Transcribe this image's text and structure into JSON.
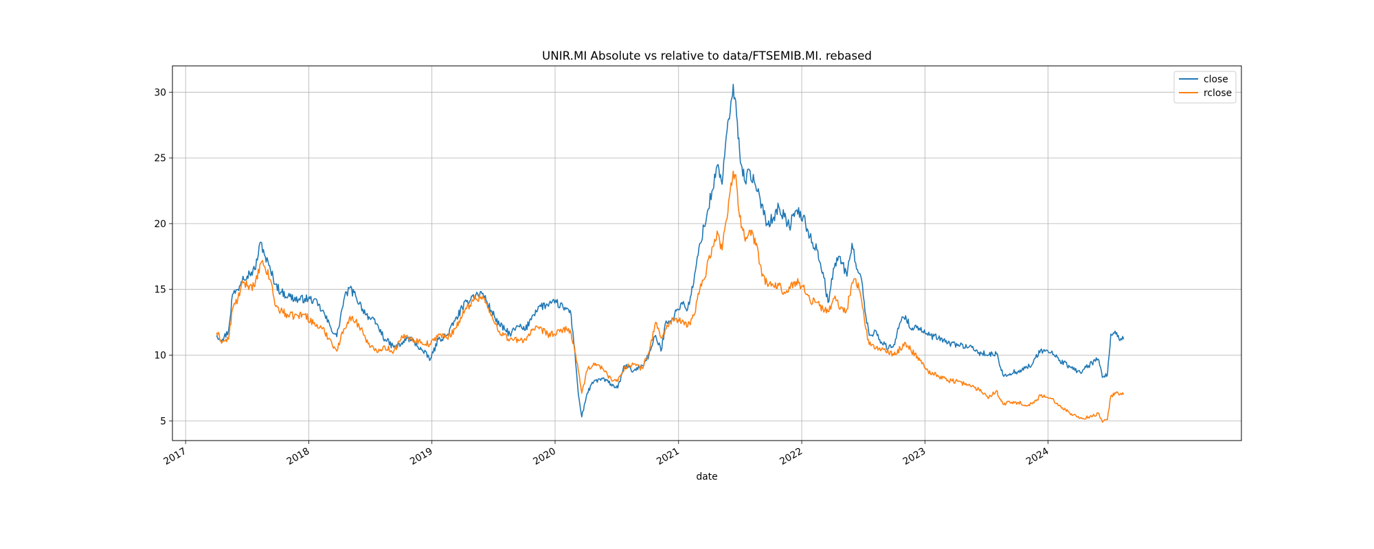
{
  "chart_data": {
    "type": "line",
    "title": "UNIR.MI Absolute vs relative to data/FTSEMIB.MI. rebased",
    "xlabel": "date",
    "ylabel": "",
    "x_ticks": [
      "2017",
      "2018",
      "2019",
      "2020",
      "2021",
      "2022",
      "2023",
      "2024"
    ],
    "y_ticks": [
      5,
      10,
      15,
      20,
      25,
      30
    ],
    "xlim": [
      "2016-11-23",
      "2025-07-27"
    ],
    "ylim": [
      3.5,
      32.0
    ],
    "grid": true,
    "legend_position": "top-right",
    "series": [
      {
        "name": "close",
        "color": "#1f77b4",
        "points": [
          [
            "2017-04-03",
            11.5
          ],
          [
            "2017-04-20",
            11.2
          ],
          [
            "2017-05-08",
            11.8
          ],
          [
            "2017-05-20",
            14.6
          ],
          [
            "2017-06-05",
            15.0
          ],
          [
            "2017-06-20",
            16.0
          ],
          [
            "2017-07-10",
            16.2
          ],
          [
            "2017-07-25",
            16.5
          ],
          [
            "2017-08-12",
            18.6
          ],
          [
            "2017-08-25",
            17.5
          ],
          [
            "2017-09-10",
            16.4
          ],
          [
            "2017-09-25",
            15.4
          ],
          [
            "2017-10-10",
            14.8
          ],
          [
            "2017-11-01",
            14.5
          ],
          [
            "2017-12-01",
            14.2
          ],
          [
            "2017-12-20",
            14.3
          ],
          [
            "2018-01-15",
            14.2
          ],
          [
            "2018-02-10",
            13.4
          ],
          [
            "2018-03-05",
            12.2
          ],
          [
            "2018-03-25",
            11.4
          ],
          [
            "2018-04-15",
            14.2
          ],
          [
            "2018-05-01",
            15.1
          ],
          [
            "2018-05-20",
            14.5
          ],
          [
            "2018-06-10",
            13.5
          ],
          [
            "2018-07-01",
            12.8
          ],
          [
            "2018-07-20",
            12.4
          ],
          [
            "2018-08-15",
            11.2
          ],
          [
            "2018-09-10",
            10.6
          ],
          [
            "2018-10-01",
            10.8
          ],
          [
            "2018-10-20",
            11.3
          ],
          [
            "2018-11-10",
            11.0
          ],
          [
            "2018-12-01",
            10.4
          ],
          [
            "2018-12-28",
            9.7
          ],
          [
            "2019-01-20",
            11.2
          ],
          [
            "2019-02-15",
            11.5
          ],
          [
            "2019-03-10",
            12.6
          ],
          [
            "2019-04-01",
            13.6
          ],
          [
            "2019-05-01",
            14.5
          ],
          [
            "2019-06-01",
            14.7
          ],
          [
            "2019-06-25",
            13.4
          ],
          [
            "2019-07-20",
            12.3
          ],
          [
            "2019-08-20",
            11.6
          ],
          [
            "2019-09-15",
            12.2
          ],
          [
            "2019-10-05",
            11.9
          ],
          [
            "2019-10-25",
            13.0
          ],
          [
            "2019-11-15",
            13.7
          ],
          [
            "2019-12-10",
            13.8
          ],
          [
            "2020-01-05",
            14.0
          ],
          [
            "2020-01-25",
            13.6
          ],
          [
            "2020-02-15",
            13.4
          ],
          [
            "2020-02-28",
            10.5
          ],
          [
            "2020-03-10",
            7.0
          ],
          [
            "2020-03-20",
            5.3
          ],
          [
            "2020-04-05",
            7.1
          ],
          [
            "2020-04-25",
            8.0
          ],
          [
            "2020-05-20",
            8.2
          ],
          [
            "2020-06-15",
            7.8
          ],
          [
            "2020-07-05",
            7.5
          ],
          [
            "2020-07-25",
            9.2
          ],
          [
            "2020-08-20",
            8.8
          ],
          [
            "2020-09-15",
            9.2
          ],
          [
            "2020-10-05",
            10.0
          ],
          [
            "2020-10-25",
            11.5
          ],
          [
            "2020-11-10",
            10.3
          ],
          [
            "2020-11-25",
            12.6
          ],
          [
            "2020-12-15",
            12.8
          ],
          [
            "2021-01-10",
            14.0
          ],
          [
            "2021-01-28",
            13.5
          ],
          [
            "2021-02-15",
            15.5
          ],
          [
            "2021-03-05",
            18.5
          ],
          [
            "2021-03-25",
            20.5
          ],
          [
            "2021-04-10",
            22.5
          ],
          [
            "2021-04-28",
            24.5
          ],
          [
            "2021-05-10",
            23.0
          ],
          [
            "2021-05-20",
            26.0
          ],
          [
            "2021-06-03",
            28.5
          ],
          [
            "2021-06-12",
            30.6
          ],
          [
            "2021-06-22",
            28.2
          ],
          [
            "2021-07-01",
            25.5
          ],
          [
            "2021-07-15",
            23.3
          ],
          [
            "2021-08-01",
            24.0
          ],
          [
            "2021-08-20",
            22.5
          ],
          [
            "2021-09-05",
            21.5
          ],
          [
            "2021-09-20",
            20.0
          ],
          [
            "2021-10-10",
            20.5
          ],
          [
            "2021-10-25",
            21.3
          ],
          [
            "2021-11-10",
            20.5
          ],
          [
            "2021-11-25",
            19.8
          ],
          [
            "2021-12-15",
            21.0
          ],
          [
            "2022-01-05",
            20.5
          ],
          [
            "2022-01-25",
            19.0
          ],
          [
            "2022-02-15",
            18.0
          ],
          [
            "2022-03-05",
            16.3
          ],
          [
            "2022-03-20",
            14.0
          ],
          [
            "2022-04-10",
            17.0
          ],
          [
            "2022-04-25",
            17.5
          ],
          [
            "2022-05-15",
            16.0
          ],
          [
            "2022-05-30",
            18.5
          ],
          [
            "2022-06-10",
            17.0
          ],
          [
            "2022-06-25",
            16.0
          ],
          [
            "2022-07-10",
            13.0
          ],
          [
            "2022-07-20",
            11.5
          ],
          [
            "2022-08-10",
            11.8
          ],
          [
            "2022-08-25",
            11.0
          ],
          [
            "2022-09-15",
            10.5
          ],
          [
            "2022-10-01",
            10.8
          ],
          [
            "2022-10-20",
            12.5
          ],
          [
            "2022-11-05",
            13.0
          ],
          [
            "2022-11-20",
            12.0
          ],
          [
            "2022-12-10",
            12.2
          ],
          [
            "2023-01-10",
            11.5
          ],
          [
            "2023-02-10",
            11.3
          ],
          [
            "2023-03-10",
            10.9
          ],
          [
            "2023-04-10",
            10.8
          ],
          [
            "2023-05-10",
            10.6
          ],
          [
            "2023-06-10",
            10.2
          ],
          [
            "2023-07-10",
            10.0
          ],
          [
            "2023-08-01",
            10.1
          ],
          [
            "2023-08-20",
            8.5
          ],
          [
            "2023-09-10",
            8.6
          ],
          [
            "2023-10-05",
            8.8
          ],
          [
            "2023-10-25",
            9.0
          ],
          [
            "2023-11-15",
            9.3
          ],
          [
            "2023-12-10",
            10.4
          ],
          [
            "2024-01-10",
            10.2
          ],
          [
            "2024-02-05",
            9.6
          ],
          [
            "2024-03-05",
            9.1
          ],
          [
            "2024-04-05",
            8.7
          ],
          [
            "2024-05-10",
            9.4
          ],
          [
            "2024-05-28",
            9.7
          ],
          [
            "2024-06-10",
            8.3
          ],
          [
            "2024-06-25",
            8.5
          ],
          [
            "2024-07-05",
            11.6
          ],
          [
            "2024-07-20",
            11.6
          ],
          [
            "2024-08-01",
            11.1
          ],
          [
            "2024-08-12",
            11.2
          ]
        ]
      },
      {
        "name": "rclose",
        "color": "#ff7f0e",
        "points": [
          [
            "2017-04-03",
            11.7
          ],
          [
            "2017-04-20",
            11.0
          ],
          [
            "2017-05-08",
            11.2
          ],
          [
            "2017-05-20",
            13.5
          ],
          [
            "2017-06-05",
            14.3
          ],
          [
            "2017-06-20",
            15.5
          ],
          [
            "2017-07-10",
            15.3
          ],
          [
            "2017-07-25",
            15.2
          ],
          [
            "2017-08-12",
            17.0
          ],
          [
            "2017-08-25",
            16.6
          ],
          [
            "2017-09-10",
            15.7
          ],
          [
            "2017-09-25",
            13.7
          ],
          [
            "2017-10-10",
            13.4
          ],
          [
            "2017-11-01",
            13.0
          ],
          [
            "2017-12-01",
            13.0
          ],
          [
            "2017-12-20",
            13.1
          ],
          [
            "2018-01-15",
            12.4
          ],
          [
            "2018-02-10",
            12.0
          ],
          [
            "2018-03-05",
            11.2
          ],
          [
            "2018-03-25",
            10.3
          ],
          [
            "2018-04-15",
            12.0
          ],
          [
            "2018-05-01",
            12.8
          ],
          [
            "2018-05-20",
            12.6
          ],
          [
            "2018-06-10",
            11.8
          ],
          [
            "2018-07-01",
            10.6
          ],
          [
            "2018-07-20",
            10.4
          ],
          [
            "2018-08-15",
            10.6
          ],
          [
            "2018-09-10",
            10.3
          ],
          [
            "2018-10-01",
            11.2
          ],
          [
            "2018-10-20",
            11.5
          ],
          [
            "2018-11-10",
            11.1
          ],
          [
            "2018-12-01",
            11.0
          ],
          [
            "2018-12-28",
            10.8
          ],
          [
            "2019-01-20",
            11.6
          ],
          [
            "2019-02-15",
            11.3
          ],
          [
            "2019-03-10",
            12.0
          ],
          [
            "2019-04-01",
            13.0
          ],
          [
            "2019-05-01",
            14.2
          ],
          [
            "2019-06-01",
            14.5
          ],
          [
            "2019-06-25",
            13.0
          ],
          [
            "2019-07-20",
            11.8
          ],
          [
            "2019-08-20",
            11.2
          ],
          [
            "2019-09-15",
            11.1
          ],
          [
            "2019-10-05",
            11.2
          ],
          [
            "2019-10-25",
            11.9
          ],
          [
            "2019-11-15",
            12.0
          ],
          [
            "2019-12-10",
            11.6
          ],
          [
            "2020-01-05",
            11.6
          ],
          [
            "2020-01-25",
            12.0
          ],
          [
            "2020-02-15",
            11.9
          ],
          [
            "2020-02-28",
            10.3
          ],
          [
            "2020-03-10",
            8.8
          ],
          [
            "2020-03-20",
            7.1
          ],
          [
            "2020-04-05",
            8.8
          ],
          [
            "2020-04-25",
            9.4
          ],
          [
            "2020-05-20",
            9.0
          ],
          [
            "2020-06-15",
            8.2
          ],
          [
            "2020-07-05",
            8.0
          ],
          [
            "2020-07-25",
            9.1
          ],
          [
            "2020-08-20",
            9.3
          ],
          [
            "2020-09-15",
            9.0
          ],
          [
            "2020-10-05",
            10.2
          ],
          [
            "2020-10-25",
            12.5
          ],
          [
            "2020-11-10",
            11.3
          ],
          [
            "2020-11-25",
            12.0
          ],
          [
            "2020-12-15",
            12.8
          ],
          [
            "2021-01-10",
            12.5
          ],
          [
            "2021-01-28",
            12.2
          ],
          [
            "2021-02-15",
            13.0
          ],
          [
            "2021-03-05",
            15.0
          ],
          [
            "2021-03-25",
            16.5
          ],
          [
            "2021-04-10",
            18.2
          ],
          [
            "2021-04-28",
            19.2
          ],
          [
            "2021-05-10",
            18.0
          ],
          [
            "2021-05-20",
            20.0
          ],
          [
            "2021-06-03",
            22.5
          ],
          [
            "2021-06-12",
            24.0
          ],
          [
            "2021-06-22",
            23.0
          ],
          [
            "2021-07-01",
            20.5
          ],
          [
            "2021-07-15",
            19.0
          ],
          [
            "2021-08-01",
            19.5
          ],
          [
            "2021-08-20",
            18.5
          ],
          [
            "2021-09-05",
            16.0
          ],
          [
            "2021-09-20",
            15.5
          ],
          [
            "2021-10-10",
            15.2
          ],
          [
            "2021-10-25",
            15.3
          ],
          [
            "2021-11-10",
            14.8
          ],
          [
            "2021-11-25",
            15.2
          ],
          [
            "2021-12-15",
            15.6
          ],
          [
            "2022-01-05",
            15.2
          ],
          [
            "2022-01-25",
            14.2
          ],
          [
            "2022-02-15",
            14.0
          ],
          [
            "2022-03-05",
            13.5
          ],
          [
            "2022-03-20",
            13.3
          ],
          [
            "2022-04-10",
            14.5
          ],
          [
            "2022-04-25",
            13.5
          ],
          [
            "2022-05-15",
            13.5
          ],
          [
            "2022-05-30",
            15.5
          ],
          [
            "2022-06-10",
            15.8
          ],
          [
            "2022-06-25",
            14.5
          ],
          [
            "2022-07-10",
            12.0
          ],
          [
            "2022-07-20",
            10.8
          ],
          [
            "2022-08-10",
            10.6
          ],
          [
            "2022-08-25",
            10.4
          ],
          [
            "2022-09-15",
            10.2
          ],
          [
            "2022-10-01",
            10.0
          ],
          [
            "2022-10-20",
            10.5
          ],
          [
            "2022-11-05",
            10.9
          ],
          [
            "2022-11-20",
            10.4
          ],
          [
            "2022-12-10",
            9.9
          ],
          [
            "2023-01-10",
            8.8
          ],
          [
            "2023-02-10",
            8.4
          ],
          [
            "2023-03-10",
            8.1
          ],
          [
            "2023-04-10",
            8.0
          ],
          [
            "2023-05-10",
            7.7
          ],
          [
            "2023-06-10",
            7.4
          ],
          [
            "2023-07-10",
            6.8
          ],
          [
            "2023-08-01",
            7.3
          ],
          [
            "2023-08-20",
            6.3
          ],
          [
            "2023-09-10",
            6.4
          ],
          [
            "2023-10-05",
            6.4
          ],
          [
            "2023-10-25",
            6.2
          ],
          [
            "2023-11-15",
            6.3
          ],
          [
            "2023-12-10",
            6.9
          ],
          [
            "2024-01-10",
            6.7
          ],
          [
            "2024-02-05",
            6.2
          ],
          [
            "2024-03-05",
            5.6
          ],
          [
            "2024-04-05",
            5.2
          ],
          [
            "2024-05-10",
            5.3
          ],
          [
            "2024-05-28",
            5.6
          ],
          [
            "2024-06-10",
            4.9
          ],
          [
            "2024-06-25",
            5.1
          ],
          [
            "2024-07-05",
            6.9
          ],
          [
            "2024-07-20",
            7.1
          ],
          [
            "2024-08-01",
            7.0
          ],
          [
            "2024-08-12",
            7.0
          ]
        ]
      }
    ]
  }
}
